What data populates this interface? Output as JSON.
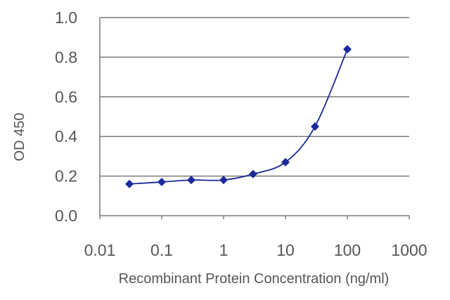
{
  "chart_data": {
    "type": "line",
    "title": "",
    "xlabel": "Recombinant Protein Concentration (ng/ml)",
    "ylabel": "OD 450",
    "x_scale": "log",
    "xlim": [
      0.01,
      1000
    ],
    "ylim": [
      0.0,
      1.0
    ],
    "x_tick_labels": [
      "0.01",
      "0.1",
      "1",
      "10",
      "100",
      "1000"
    ],
    "x_tick_values": [
      0.01,
      0.1,
      1,
      10,
      100,
      1000
    ],
    "y_tick_labels": [
      "0.0",
      "0.2",
      "0.4",
      "0.6",
      "0.8",
      "1.0"
    ],
    "y_tick_values": [
      0.0,
      0.2,
      0.4,
      0.6,
      0.8,
      1.0
    ],
    "grid": "horizontal",
    "marker": "diamond",
    "colors": {
      "series": "#1a2a9a",
      "grid": "#7a7a7a",
      "axis": "#7a7a7a",
      "text": "#555555"
    },
    "series": [
      {
        "x": [
          0.03,
          0.1,
          0.3,
          1,
          3,
          10,
          30,
          100
        ],
        "y": [
          0.16,
          0.17,
          0.18,
          0.18,
          0.21,
          0.27,
          0.45,
          0.84
        ]
      }
    ]
  }
}
